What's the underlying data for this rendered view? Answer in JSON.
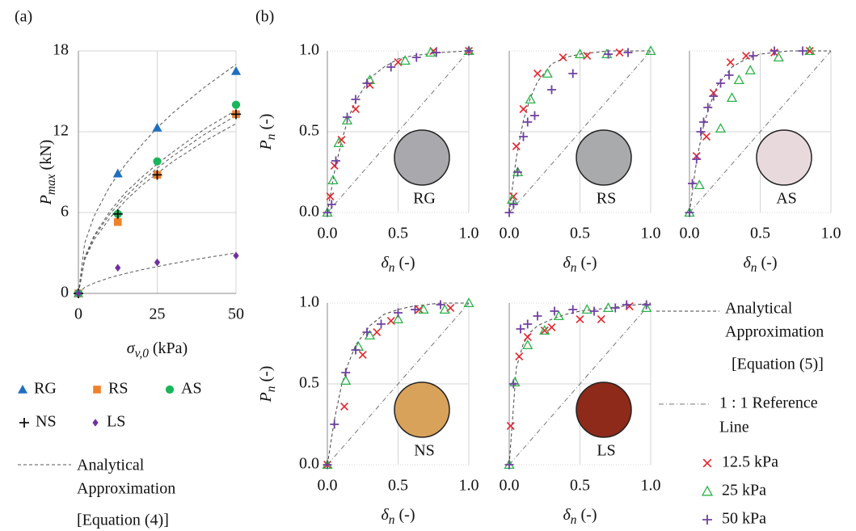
{
  "chart_data": [
    {
      "type": "scatter",
      "panel_label": "(a)",
      "x_label": {
        "symbol": "σ",
        "subscript": "v,0",
        "unit": "(kPa)"
      },
      "y_label": {
        "symbol": "P",
        "subscript": "max",
        "unit": "(kN)"
      },
      "xlim": [
        0,
        50
      ],
      "ylim": [
        0,
        18
      ],
      "xticks": [
        0,
        25,
        50
      ],
      "yticks": [
        0,
        6,
        12,
        18
      ],
      "grid": true,
      "series": [
        {
          "name": "RG",
          "color": "#1f6fc0",
          "marker": "triangle",
          "x": [
            0,
            12.5,
            25,
            50
          ],
          "values": [
            0,
            8.9,
            12.3,
            16.5
          ]
        },
        {
          "name": "RS",
          "color": "#f0812a",
          "marker": "square",
          "x": [
            0,
            12.5,
            25,
            50
          ],
          "values": [
            0,
            5.3,
            8.8,
            13.3
          ]
        },
        {
          "name": "AS",
          "color": "#19b55a",
          "marker": "circle",
          "x": [
            0,
            12.5,
            25,
            50
          ],
          "values": [
            0,
            5.9,
            9.8,
            14
          ]
        },
        {
          "name": "NS",
          "color": "#111111",
          "marker": "plus",
          "x": [
            0,
            12.5,
            25,
            50
          ],
          "values": [
            0,
            5.9,
            8.8,
            13.3
          ]
        },
        {
          "name": "LS",
          "color": "#7030a0",
          "marker": "diamond",
          "x": [
            0,
            12.5,
            25,
            50
          ],
          "values": [
            0,
            1.9,
            2.3,
            2.8
          ]
        }
      ],
      "fit_x": [
        0,
        2,
        5,
        10,
        15,
        20,
        25,
        30,
        40,
        50
      ],
      "fit_values": [
        [
          0,
          3.74,
          5.75,
          7.97,
          9.6,
          11,
          12.3,
          13.4,
          15.3,
          17
        ],
        [
          0,
          2.7,
          4.3,
          6.1,
          7.5,
          8.6,
          9.6,
          10.5,
          12.2,
          13.6
        ],
        [
          0,
          2.6,
          4.2,
          5.9,
          7.2,
          8.3,
          9.3,
          10.2,
          11.8,
          13.2
        ],
        [
          0,
          2.5,
          4,
          5.6,
          6.9,
          8,
          8.9,
          9.8,
          11.3,
          12.6
        ],
        [
          0,
          0.45,
          0.77,
          1.17,
          1.48,
          1.75,
          1.99,
          2.22,
          2.63,
          3
        ]
      ],
      "fit_label": [
        "Analytical",
        "Approximation",
        "[Equation (4)]"
      ]
    },
    {
      "type": "scatter",
      "panel_label": "(b)",
      "x_label": {
        "symbol": "δ",
        "subscript": "n",
        "unit": "(-)"
      },
      "y_label": {
        "symbol": "P",
        "subscript": "n",
        "unit": "(-)"
      },
      "xlim": [
        0,
        1
      ],
      "ylim": [
        0,
        1
      ],
      "xticks": [
        {
          "value": 0,
          "label": "0.0"
        },
        {
          "value": 0.5,
          "label": "0.5"
        },
        {
          "value": 1,
          "label": "1.0"
        }
      ],
      "yticks": [
        {
          "value": 0,
          "label": "0.0"
        },
        {
          "value": 0.5,
          "label": "0.5"
        },
        {
          "value": 1,
          "label": "1.0"
        }
      ],
      "grid": true,
      "series": [
        {
          "name": "12.5 kPa",
          "color": "#e5232a",
          "marker": "x"
        },
        {
          "name": "25 kPa",
          "color": "#2db34a",
          "marker": "triangle-open"
        },
        {
          "name": "50 kPa",
          "color": "#7040a0",
          "marker": "plus"
        }
      ],
      "fit_label": [
        "Analytical",
        "Approximation",
        "[Equation (5)]"
      ],
      "reference_label": [
        "1 : 1 Reference",
        "Line"
      ],
      "fit_x": [
        0,
        0.05,
        0.1,
        0.15,
        0.2,
        0.3,
        0.4,
        0.5,
        0.6,
        0.7,
        0.8,
        1
      ],
      "panels": [
        {
          "name": "RG",
          "color": "#a9a9ad",
          "fit_values": [
            0,
            0.25,
            0.44,
            0.59,
            0.69,
            0.83,
            0.9,
            0.95,
            0.97,
            0.98,
            0.99,
            1
          ],
          "series": [
            {
              "x": [
                0.02,
                0.05,
                0.1,
                0.2,
                0.3,
                0.5,
                0.75,
                1
              ],
              "values": [
                0.1,
                0.29,
                0.45,
                0.64,
                0.79,
                0.93,
                1,
                1
              ]
            },
            {
              "x": [
                0,
                0.04,
                0.08,
                0.14,
                0.3,
                0.55,
                0.73,
                1
              ],
              "values": [
                0,
                0.2,
                0.43,
                0.57,
                0.82,
                0.94,
                0.99,
                1
              ]
            },
            {
              "x": [
                0,
                0.03,
                0.06,
                0.14,
                0.2,
                0.28,
                0.45,
                0.63,
                0.77,
                1
              ],
              "values": [
                0,
                0.05,
                0.32,
                0.59,
                0.7,
                0.8,
                0.9,
                0.96,
                0.99,
                1
              ]
            }
          ]
        },
        {
          "name": "RS",
          "color": "#a8aaab",
          "fit_values": [
            0,
            0.34,
            0.57,
            0.71,
            0.81,
            0.92,
            0.96,
            0.98,
            0.99,
            1,
            1,
            1
          ],
          "series": [
            {
              "x": [
                0.03,
                0.05,
                0.1,
                0.2,
                0.38,
                0.55,
                0.78
              ],
              "values": [
                0.1,
                0.41,
                0.64,
                0.86,
                0.96,
                0.97,
                0.99
              ]
            },
            {
              "x": [
                0.02,
                0.06,
                0.15,
                0.27,
                0.5,
                0.69,
                1
              ],
              "values": [
                0.08,
                0.25,
                0.7,
                0.86,
                0.98,
                0.98,
                1
              ]
            },
            {
              "x": [
                0,
                0.03,
                0.06,
                0.1,
                0.13,
                0.18,
                0.3,
                0.45,
                0.7,
                0.84
              ],
              "values": [
                0,
                0.05,
                0.25,
                0.47,
                0.56,
                0.6,
                0.76,
                0.86,
                0.98,
                0.99
              ]
            }
          ]
        },
        {
          "name": "AS",
          "color": "#e8dadc",
          "fit_values": [
            0,
            0.32,
            0.54,
            0.68,
            0.79,
            0.9,
            0.95,
            0.98,
            0.99,
            1,
            1,
            1
          ],
          "series": [
            {
              "x": [
                0.05,
                0.12,
                0.17,
                0.29,
                0.4,
                0.6,
                0.85
              ],
              "values": [
                0.35,
                0.47,
                0.74,
                0.93,
                0.97,
                0.99,
                1
              ]
            },
            {
              "x": [
                0,
                0.07,
                0.22,
                0.3,
                0.35,
                0.43,
                0.63,
                0.85
              ],
              "values": [
                0,
                0.17,
                0.52,
                0.71,
                0.82,
                0.88,
                0.96,
                1
              ]
            },
            {
              "x": [
                0,
                0.02,
                0.05,
                0.08,
                0.1,
                0.13,
                0.17,
                0.22,
                0.28,
                0.45,
                0.6,
                0.8
              ],
              "values": [
                0,
                0.18,
                0.33,
                0.5,
                0.56,
                0.65,
                0.72,
                0.8,
                0.85,
                0.97,
                1,
                1
              ]
            }
          ]
        },
        {
          "name": "NS",
          "color": "#d9a25a",
          "fit_values": [
            0,
            0.28,
            0.49,
            0.63,
            0.74,
            0.86,
            0.93,
            0.96,
            0.98,
            0.99,
            1,
            1
          ],
          "series": [
            {
              "x": [
                0,
                0.12,
                0.25,
                0.35,
                0.45,
                0.65,
                0.87
              ],
              "values": [
                0,
                0.36,
                0.68,
                0.82,
                0.89,
                0.96,
                0.97
              ]
            },
            {
              "x": [
                0,
                0.13,
                0.22,
                0.3,
                0.5,
                0.68,
                0.83,
                1
              ],
              "values": [
                0,
                0.52,
                0.73,
                0.8,
                0.9,
                0.96,
                0.96,
                1
              ]
            },
            {
              "x": [
                0,
                0.05,
                0.13,
                0.2,
                0.28,
                0.38,
                0.5,
                0.62,
                0.8
              ],
              "values": [
                0,
                0.25,
                0.57,
                0.71,
                0.82,
                0.87,
                0.94,
                0.96,
                0.99
              ]
            }
          ]
        },
        {
          "name": "LS",
          "color": "#8e2a1a",
          "fit_values": [
            0,
            0.6,
            0.75,
            0.82,
            0.86,
            0.9,
            0.93,
            0.95,
            0.96,
            0.97,
            0.98,
            1
          ],
          "series": [
            {
              "x": [
                0.01,
                0.07,
                0.13,
                0.25,
                0.3,
                0.5,
                0.65,
                0.85
              ],
              "values": [
                0.24,
                0.67,
                0.79,
                0.83,
                0.85,
                0.9,
                0.9,
                0.98
              ]
            },
            {
              "x": [
                0,
                0.04,
                0.13,
                0.25,
                0.35,
                0.55,
                0.7,
                0.97
              ],
              "values": [
                0,
                0.51,
                0.74,
                0.83,
                0.92,
                0.96,
                0.97,
                0.97
              ]
            },
            {
              "x": [
                0,
                0.03,
                0.08,
                0.13,
                0.2,
                0.32,
                0.45,
                0.6,
                0.75,
                0.83,
                0.97
              ],
              "values": [
                0,
                0.5,
                0.84,
                0.87,
                0.92,
                0.95,
                0.96,
                0.95,
                0.97,
                0.99,
                0.99
              ]
            }
          ]
        }
      ]
    }
  ]
}
